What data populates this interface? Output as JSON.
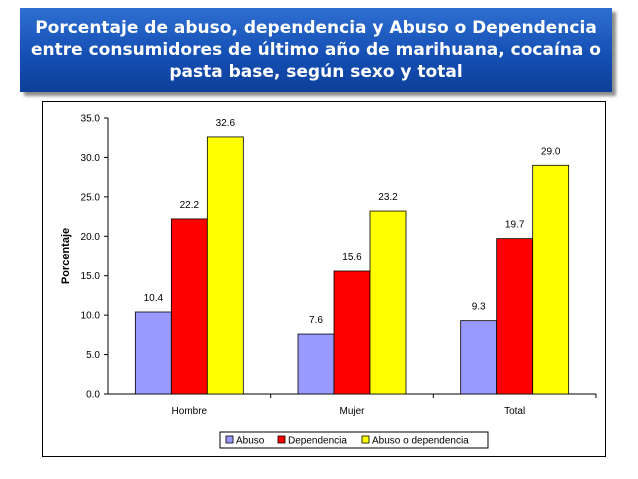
{
  "title": "Porcentaje de abuso, dependencia y Abuso o Dependencia entre consumidores de último año de marihuana, cocaína o pasta base, según sexo y total",
  "chart_data": {
    "type": "bar",
    "categories": [
      "Hombre",
      "Mujer",
      "Total"
    ],
    "series": [
      {
        "name": "Abuso",
        "values": [
          10.4,
          7.6,
          9.3
        ],
        "color": "#9999ff"
      },
      {
        "name": "Dependencia",
        "values": [
          22.2,
          15.6,
          19.7
        ],
        "color": "#ff0000"
      },
      {
        "name": "Abuso o dependencia",
        "values": [
          32.6,
          23.2,
          29.0
        ],
        "color": "#ffff00"
      }
    ],
    "value_labels": [
      [
        "10.4",
        "7.6",
        "9.3"
      ],
      [
        "22.2",
        "15.6",
        "19.7"
      ],
      [
        "32.6",
        "23.2",
        "29.0"
      ]
    ],
    "ylabel": "Porcentaje",
    "xlabel": "",
    "ylim": [
      0,
      35
    ],
    "yticks": [
      "0.0",
      "5.0",
      "10.0",
      "15.0",
      "20.0",
      "25.0",
      "30.0",
      "35.0"
    ],
    "grid": false,
    "legend_position": "bottom"
  }
}
